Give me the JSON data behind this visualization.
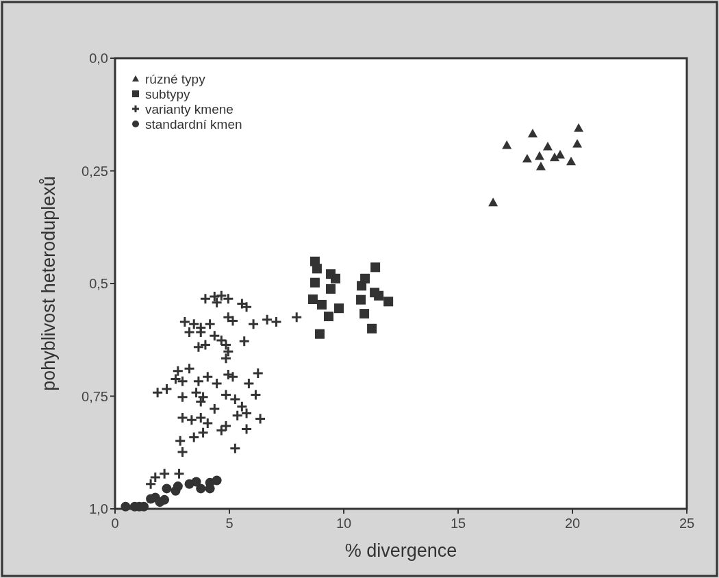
{
  "chart_data": {
    "type": "scatter",
    "xlabel": "% divergence",
    "ylabel": "pohyblivost heteroduplexů",
    "xlim": [
      0,
      25
    ],
    "xticks": [
      0,
      5,
      10,
      15,
      20,
      25
    ],
    "ylim": [
      1,
      0
    ],
    "yticks": [
      {
        "value": 0,
        "label": "0,0"
      },
      {
        "value": 0.25,
        "label": "0,25"
      },
      {
        "value": 0.5,
        "label": "0,5"
      },
      {
        "value": 0.75,
        "label": "0,75"
      },
      {
        "value": 1,
        "label": "1,0"
      }
    ],
    "grid": false,
    "legend": "top left",
    "series": [
      {
        "name": "rúzné typy",
        "color": "#333333",
        "marker": "triangle",
        "x": [
          16.53,
          17.13,
          18.26,
          18.02,
          18.56,
          18.62,
          18.92,
          19.22,
          19.46,
          19.94,
          20.27,
          20.21
        ],
        "values": [
          0.32,
          0.193,
          0.167,
          0.223,
          0.217,
          0.24,
          0.196,
          0.22,
          0.214,
          0.229,
          0.155,
          0.19
        ]
      },
      {
        "name": "subtypy",
        "color": "#333333",
        "marker": "square",
        "x": [
          8.74,
          8.83,
          8.74,
          9.43,
          9.64,
          9.43,
          8.65,
          9.04,
          9.79,
          9.34,
          8.95,
          11.38,
          10.93,
          10.78,
          11.35,
          11.53,
          11.95,
          10.75,
          10.9,
          11.23
        ],
        "values": [
          0.451,
          0.467,
          0.498,
          0.479,
          0.489,
          0.512,
          0.535,
          0.547,
          0.555,
          0.573,
          0.612,
          0.464,
          0.489,
          0.505,
          0.52,
          0.527,
          0.54,
          0.536,
          0.567,
          0.6
        ]
      },
      {
        "name": "varianty kmene",
        "color": "#333333",
        "marker": "cross",
        "x": [
          3.95,
          4.35,
          4.65,
          4.95,
          4.45,
          5.55,
          5.75,
          4.95,
          5.15,
          6.05,
          6.65,
          7.05,
          7.94,
          3.05,
          3.45,
          3.75,
          4.15,
          3.25,
          3.75,
          4.35,
          4.65,
          4.85,
          4.95,
          4.85,
          5.65,
          3.65,
          3.95,
          2.75,
          3.25,
          2.65,
          2.95,
          1.86,
          2.26,
          2.95,
          3.65,
          4.05,
          4.45,
          4.95,
          5.15,
          3.55,
          3.85,
          3.75,
          4.35,
          4.85,
          5.25,
          5.55,
          5.35,
          5.75,
          5.85,
          6.15,
          6.25,
          6.35,
          2.95,
          3.35,
          3.75,
          4.05,
          3.85,
          4.65,
          4.85,
          5.75,
          3.45,
          2.85,
          2.95,
          5.25,
          1.76,
          2.16,
          2.8,
          1.56
        ],
        "values": [
          0.534,
          0.529,
          0.527,
          0.534,
          0.542,
          0.545,
          0.552,
          0.575,
          0.583,
          0.59,
          0.58,
          0.585,
          0.575,
          0.585,
          0.59,
          0.598,
          0.59,
          0.608,
          0.608,
          0.616,
          0.626,
          0.636,
          0.651,
          0.666,
          0.628,
          0.641,
          0.636,
          0.694,
          0.689,
          0.712,
          0.717,
          0.742,
          0.734,
          0.752,
          0.717,
          0.707,
          0.722,
          0.702,
          0.707,
          0.742,
          0.752,
          0.762,
          0.778,
          0.747,
          0.757,
          0.773,
          0.793,
          0.788,
          0.722,
          0.747,
          0.699,
          0.8,
          0.798,
          0.803,
          0.798,
          0.81,
          0.831,
          0.826,
          0.816,
          0.823,
          0.841,
          0.849,
          0.874,
          0.866,
          0.93,
          0.922,
          0.922,
          0.945
        ]
      },
      {
        "name": "standardní kmen",
        "color": "#333333",
        "marker": "circle",
        "x": [
          0.46,
          0.86,
          1.06,
          1.56,
          1.26,
          1.76,
          1.96,
          2.16,
          2.26,
          2.65,
          2.75,
          3.25,
          3.55,
          4.15,
          4.45,
          4.15,
          3.75
        ],
        "values": [
          0.995,
          0.995,
          0.995,
          0.978,
          0.995,
          0.975,
          0.985,
          0.98,
          0.955,
          0.96,
          0.95,
          0.945,
          0.94,
          0.942,
          0.937,
          0.955,
          0.955
        ]
      }
    ]
  }
}
